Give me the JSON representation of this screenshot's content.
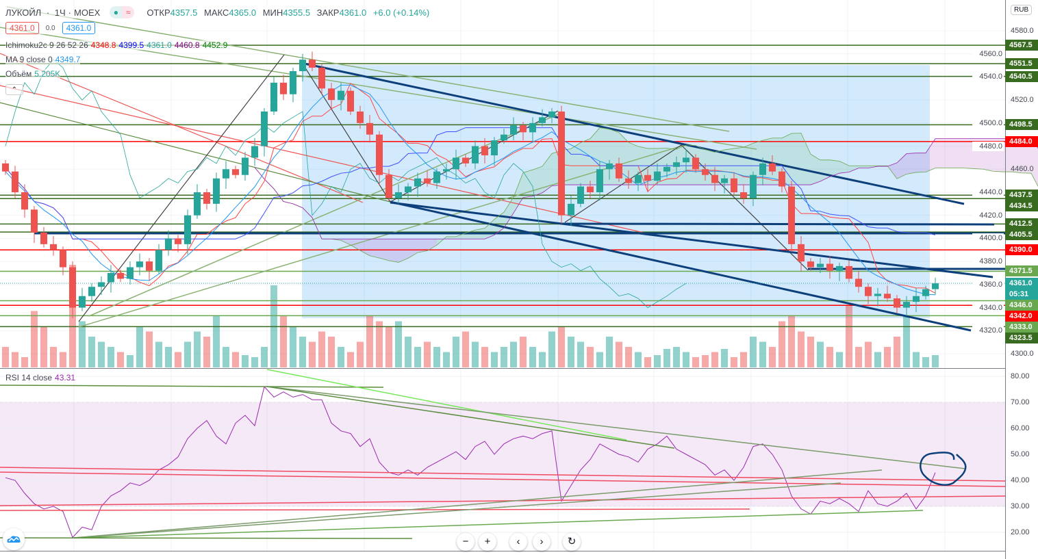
{
  "header": {
    "symbol": "ЛУКОЙЛ",
    "interval": "1Ч",
    "exchange": "MOEX",
    "open_label": "ОТКР",
    "open": "4357.5",
    "high_label": "МАКС",
    "high": "4365.0",
    "low_label": "МИН",
    "low": "4355.5",
    "close_label": "ЗАКР",
    "close": "4361.0",
    "change": "+6.0 (+0.14%)",
    "sell": "4361.0",
    "spread": "0.0",
    "buy": "4361.0",
    "status_icon": "green-dot",
    "compare_icon": "wave-approx"
  },
  "indicators": {
    "ichimoku": {
      "label": "Ichimoku2c 9 26 52 26",
      "values": [
        "4348.8",
        "4399.5",
        "4361.0",
        "4460.8",
        "4452.9"
      ],
      "colors": [
        "#ff0000",
        "#0000ff",
        "#26a69a",
        "#800080",
        "#008000"
      ]
    },
    "ma": {
      "label": "MA 9 close 0",
      "value": "4349.7"
    },
    "volume": {
      "label": "Объём",
      "value": "5.205K"
    },
    "rsi": {
      "label": "RSI 14 close",
      "value": "43.31"
    }
  },
  "currency": "RUB",
  "countdown": "05:31",
  "colors": {
    "up": "#26a69a",
    "down": "#ef5350",
    "level_green": "#386b1f",
    "level_red": "#ff0000",
    "level_light": "#6aa84f",
    "channel": "#0d3f7a",
    "rsi": "#9c27b0"
  },
  "chart_data": [
    {
      "type": "candlestick",
      "title": "ЛУКОЙЛ · 1Ч · MOEX",
      "ylim": [
        4290,
        4590
      ],
      "yticks": [
        4300,
        4320,
        4340,
        4360,
        4380,
        4400,
        4420,
        4440,
        4460,
        4480,
        4500,
        4520,
        4540,
        4560,
        4580
      ],
      "first_open": 4465,
      "closes": [
        4458,
        4440,
        4425,
        4405,
        4395,
        4390,
        4375,
        4340,
        4350,
        4358,
        4362,
        4370,
        4365,
        4375,
        4380,
        4372,
        4390,
        4400,
        4395,
        4420,
        4440,
        4430,
        4452,
        4460,
        4455,
        4470,
        4480,
        4510,
        4535,
        4525,
        4545,
        4555,
        4548,
        4530,
        4520,
        4528,
        4510,
        4500,
        4490,
        4455,
        4435,
        4440,
        4445,
        4452,
        4448,
        4458,
        4460,
        4470,
        4465,
        4480,
        4472,
        4485,
        4490,
        4498,
        4492,
        4500,
        4505,
        4510,
        4420,
        4430,
        4445,
        4440,
        4460,
        4465,
        4452,
        4448,
        4455,
        4450,
        4458,
        4462,
        4466,
        4470,
        4460,
        4455,
        4448,
        4452,
        4440,
        4435,
        4455,
        4465,
        4458,
        4445,
        4395,
        4380,
        4375,
        4378,
        4372,
        4376,
        4365,
        4358,
        4350,
        4352,
        4348,
        4340,
        4345,
        4350,
        4356,
        4361
      ],
      "volumes_relative": [
        20,
        15,
        10,
        55,
        40,
        20,
        15,
        100,
        45,
        30,
        25,
        20,
        15,
        12,
        40,
        35,
        25,
        20,
        15,
        25,
        35,
        30,
        50,
        20,
        15,
        12,
        10,
        20,
        80,
        50,
        40,
        30,
        25,
        35,
        30,
        20,
        15,
        25,
        50,
        45,
        40,
        45,
        30,
        20,
        25,
        20,
        15,
        30,
        35,
        25,
        20,
        15,
        20,
        25,
        30,
        20,
        15,
        35,
        40,
        30,
        25,
        20,
        15,
        30,
        25,
        20,
        15,
        10,
        12,
        18,
        20,
        15,
        10,
        12,
        15,
        18,
        10,
        15,
        30,
        25,
        20,
        45,
        50,
        35,
        30,
        25,
        20,
        15,
        60,
        20,
        25,
        15,
        20,
        30,
        50,
        15,
        10,
        12
      ],
      "levels": [
        {
          "value": "4567.5",
          "kind": "green"
        },
        {
          "value": "4551.5",
          "kind": "green"
        },
        {
          "value": "4540.5",
          "kind": "green"
        },
        {
          "value": "4498.5",
          "kind": "green"
        },
        {
          "value": "4484.0",
          "kind": "red"
        },
        {
          "value": "4437.5",
          "kind": "green"
        },
        {
          "value": "4434.5",
          "kind": "green"
        },
        {
          "value": "4412.5",
          "kind": "green"
        },
        {
          "value": "4405.5",
          "kind": "green"
        },
        {
          "value": "4390.0",
          "kind": "red"
        },
        {
          "value": "4371.5",
          "kind": "light"
        },
        {
          "value": "4361.0",
          "kind": "last"
        },
        {
          "value": "4346.0",
          "kind": "light"
        },
        {
          "value": "4342.0",
          "kind": "red"
        },
        {
          "value": "4333.0",
          "kind": "light"
        },
        {
          "value": "4323.5",
          "kind": "green"
        }
      ]
    },
    {
      "type": "line",
      "name": "RSI 14 close",
      "ylim": [
        12,
        83
      ],
      "yticks": [
        "20.00",
        "30.00",
        "40.00",
        "50.00",
        "60.00",
        "70.00",
        "80.00"
      ],
      "band": [
        30,
        70
      ],
      "values": [
        41,
        40,
        35,
        31,
        29,
        30,
        28,
        18,
        22,
        21,
        30,
        34,
        36,
        39,
        38,
        40,
        44,
        46,
        49,
        56,
        60,
        63,
        57,
        54,
        62,
        65,
        61,
        76,
        72,
        74,
        72,
        73,
        71,
        71,
        62,
        59,
        58,
        53,
        56,
        47,
        43,
        42,
        44,
        42,
        45,
        47,
        49,
        51,
        48,
        53,
        55,
        50,
        54,
        56,
        57,
        56,
        58,
        59,
        32,
        38,
        44,
        48,
        54,
        52,
        50,
        49,
        47,
        52,
        54,
        57,
        52,
        50,
        48,
        46,
        42,
        44,
        40,
        45,
        53,
        54,
        50,
        44,
        34,
        29,
        27,
        32,
        31,
        33,
        31,
        28,
        36,
        31,
        30,
        32,
        35,
        29,
        34,
        43
      ]
    }
  ],
  "toolbar": {
    "zoom_out": "−",
    "zoom_in": "+",
    "back": "‹",
    "forward": "›",
    "reset": "↻"
  }
}
